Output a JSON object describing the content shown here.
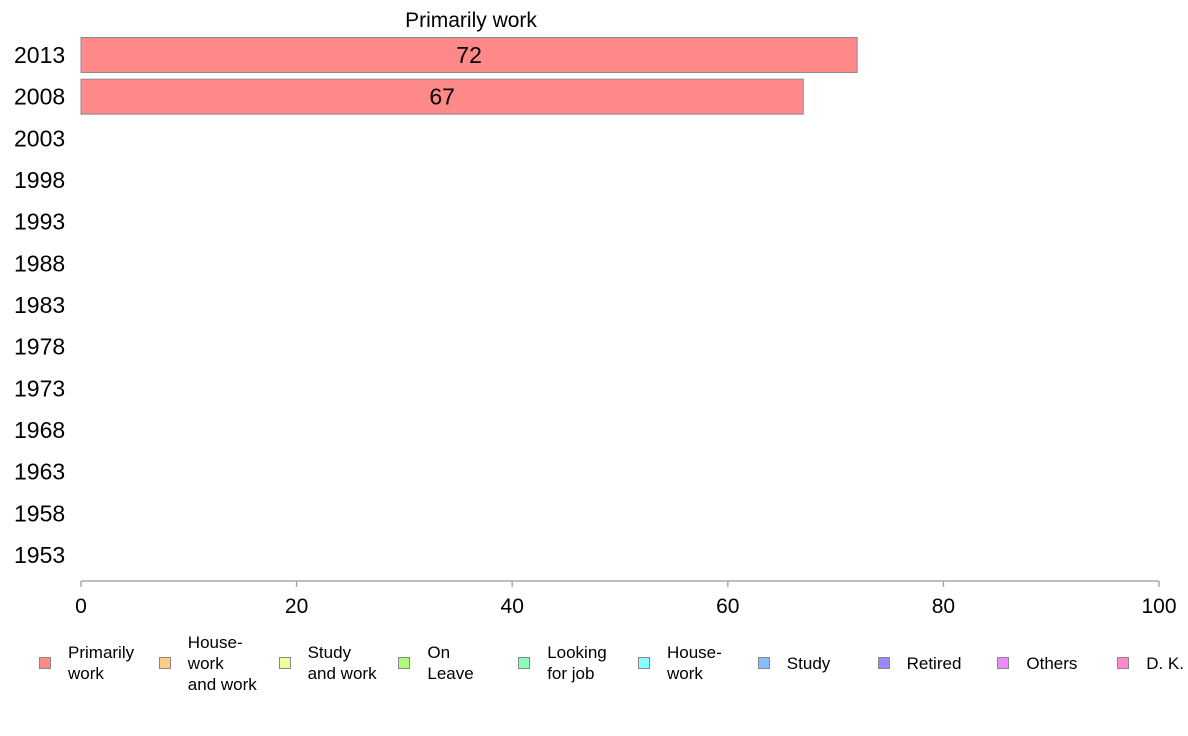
{
  "chart_data": {
    "type": "bar",
    "orientation": "horizontal",
    "title": "Primarily work",
    "categories": [
      "2013",
      "2008",
      "2003",
      "1998",
      "1993",
      "1988",
      "1983",
      "1978",
      "1973",
      "1968",
      "1963",
      "1958",
      "1953"
    ],
    "series": [
      {
        "name": "Primarily work",
        "color": "#ff8888",
        "values": [
          72,
          67,
          null,
          null,
          null,
          null,
          null,
          null,
          null,
          null,
          null,
          null,
          null
        ]
      }
    ],
    "data_labels": [
      "72",
      "67",
      "",
      "",
      "",
      "",
      "",
      "",
      "",
      "",
      "",
      "",
      ""
    ],
    "xlim": [
      0,
      100
    ],
    "xticks": [
      "0",
      "20",
      "40",
      "60",
      "80",
      "100"
    ],
    "grid": false,
    "legend_position": "bottom"
  },
  "legend": {
    "items": [
      {
        "label": "Primarily\nwork",
        "color": "#ff8888"
      },
      {
        "label": "House-\nwork\nand work",
        "color": "#ffcc88"
      },
      {
        "label": "Study\nand work",
        "color": "#eeff99"
      },
      {
        "label": "On\nLeave",
        "color": "#aaff77"
      },
      {
        "label": "Looking\nfor job",
        "color": "#88ffbb"
      },
      {
        "label": "House-\nwork",
        "color": "#88ffff"
      },
      {
        "label": "Study",
        "color": "#88bbff"
      },
      {
        "label": "Retired",
        "color": "#9988ff"
      },
      {
        "label": "Others",
        "color": "#ee88ff"
      },
      {
        "label": "D. K.",
        "color": "#ff88cc"
      }
    ]
  }
}
